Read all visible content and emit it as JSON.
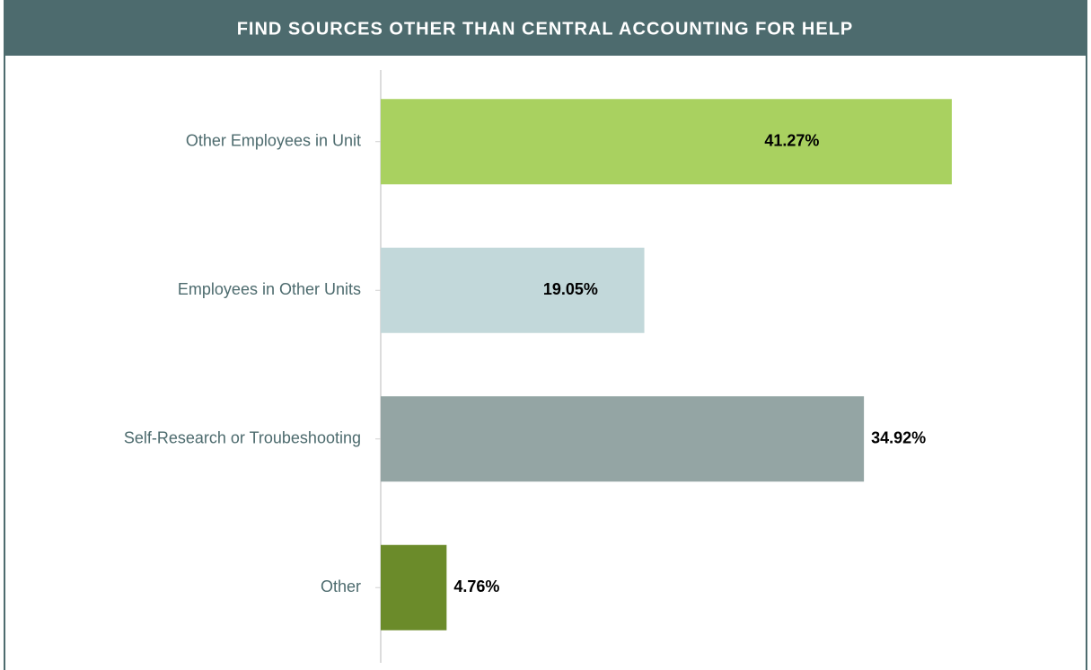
{
  "chart_data": {
    "type": "bar",
    "orientation": "horizontal",
    "title": "FIND SOURCES OTHER THAN CENTRAL ACCOUNTING FOR HELP",
    "categories": [
      "Other Employees in Unit",
      "Employees in Other Units",
      "Self-Research or Troubeshooting",
      "Other"
    ],
    "values": [
      41.27,
      19.05,
      34.92,
      4.76
    ],
    "value_labels": [
      "41.27%",
      "19.05%",
      "34.92%",
      "4.76%"
    ],
    "colors": [
      "#a9d160",
      "#c2d8da",
      "#94a5a4",
      "#6b8b2a"
    ]
  }
}
